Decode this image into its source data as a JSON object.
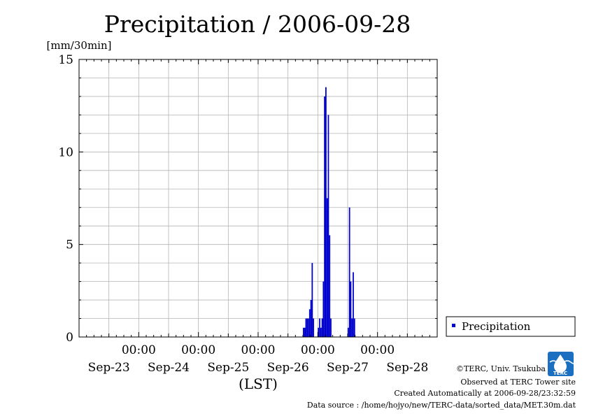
{
  "chart_data": {
    "type": "bar",
    "title": "Precipitation / 2006-09-28",
    "ylabel": "[mm/30min]",
    "xlabel": "(LST)",
    "ylim": [
      0,
      15
    ],
    "yticks": [
      "0",
      "5",
      "10",
      "15"
    ],
    "ytick_values": [
      0,
      5,
      10,
      15
    ],
    "xlim_days": [
      0,
      6
    ],
    "xtick_time_labels": [
      "00:00",
      "00:00",
      "00:00",
      "00:00",
      "00:00"
    ],
    "xtick_date_labels": [
      "Sep-23",
      "Sep-24",
      "Sep-25",
      "Sep-26",
      "Sep-27",
      "Sep-28"
    ],
    "grid": true,
    "legend_position": "right",
    "series": [
      {
        "name": "Precipitation",
        "color": "#0000cc",
        "points": [
          {
            "t": "2006-09-26 18:30",
            "v": 0.5
          },
          {
            "t": "2006-09-26 19:00",
            "v": 0.5
          },
          {
            "t": "2006-09-26 19:30",
            "v": 1.0
          },
          {
            "t": "2006-09-26 20:00",
            "v": 1.0
          },
          {
            "t": "2006-09-26 20:30",
            "v": 1.0
          },
          {
            "t": "2006-09-26 21:00",
            "v": 1.5
          },
          {
            "t": "2006-09-26 21:30",
            "v": 2.0
          },
          {
            "t": "2006-09-26 22:00",
            "v": 4.0
          },
          {
            "t": "2006-09-26 22:30",
            "v": 1.0
          },
          {
            "t": "2006-09-26 23:00",
            "v": 0.0
          },
          {
            "t": "2006-09-26 23:30",
            "v": 0.0
          },
          {
            "t": "2006-09-27 00:00",
            "v": 0.0
          },
          {
            "t": "2006-09-27 00:30",
            "v": 0.5
          },
          {
            "t": "2006-09-27 01:00",
            "v": 1.0
          },
          {
            "t": "2006-09-27 01:30",
            "v": 0.5
          },
          {
            "t": "2006-09-27 02:00",
            "v": 1.0
          },
          {
            "t": "2006-09-27 02:30",
            "v": 3.0
          },
          {
            "t": "2006-09-27 03:00",
            "v": 13.0
          },
          {
            "t": "2006-09-27 03:30",
            "v": 13.5
          },
          {
            "t": "2006-09-27 04:00",
            "v": 7.5
          },
          {
            "t": "2006-09-27 04:30",
            "v": 12.0
          },
          {
            "t": "2006-09-27 05:00",
            "v": 5.5
          },
          {
            "t": "2006-09-27 05:30",
            "v": 1.0
          },
          {
            "t": "2006-09-27 12:30",
            "v": 0.5
          },
          {
            "t": "2006-09-27 13:00",
            "v": 7.0
          },
          {
            "t": "2006-09-27 13:30",
            "v": 3.0
          },
          {
            "t": "2006-09-27 14:00",
            "v": 1.0
          },
          {
            "t": "2006-09-27 14:30",
            "v": 3.5
          },
          {
            "t": "2006-09-27 15:00",
            "v": 1.0
          }
        ]
      }
    ]
  },
  "footer": {
    "copyright": "©TERC, Univ. Tsukuba",
    "observed": "Observed at TERC Tower site",
    "created": "Created Automatically at 2006-09-28/23:32:59",
    "source": "Data source : /home/hojyo/new/TERC-data/sorted_data/MET.30m.dat"
  },
  "logo": {
    "text": "TERC",
    "color": "#1a6fc0"
  }
}
